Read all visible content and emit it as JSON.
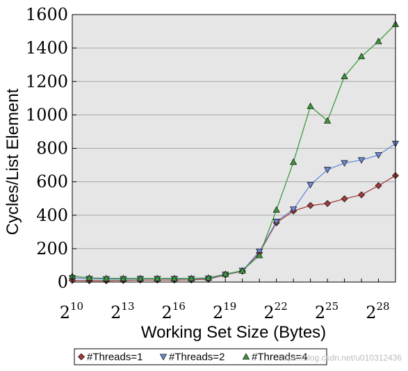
{
  "chart_data": {
    "type": "line",
    "xlabel": "Working Set Size (Bytes)",
    "ylabel": "Cycles/List Element",
    "ylim": [
      0,
      1600
    ],
    "y_ticks": [
      0,
      200,
      400,
      600,
      800,
      1000,
      1200,
      1400,
      1600
    ],
    "x_exponent_range": [
      10,
      29
    ],
    "x_tick_base": "2",
    "x_tick_exponents": [
      "10",
      "13",
      "16",
      "19",
      "22",
      "25",
      "28"
    ],
    "x_scale": "log2",
    "grid": "horizontal",
    "legend_position": "bottom",
    "series": [
      {
        "name": "#Threads=1",
        "color": "#a33a3a",
        "marker": "diamond",
        "x_exponents": [
          10,
          11,
          12,
          13,
          14,
          15,
          16,
          17,
          18,
          19,
          20,
          21,
          22,
          23,
          24,
          25,
          26,
          27,
          28,
          29
        ],
        "values": [
          10,
          8,
          8,
          10,
          12,
          12,
          12,
          13,
          17,
          43,
          65,
          175,
          355,
          425,
          458,
          470,
          498,
          522,
          577,
          637
        ]
      },
      {
        "name": "#Threads=2",
        "color": "#6a8ad8",
        "marker": "triangle-down",
        "x_exponents": [
          10,
          11,
          12,
          13,
          14,
          15,
          16,
          17,
          18,
          19,
          20,
          21,
          22,
          23,
          24,
          25,
          26,
          27,
          28,
          29
        ],
        "values": [
          25,
          20,
          18,
          18,
          20,
          20,
          20,
          20,
          22,
          45,
          68,
          183,
          362,
          435,
          582,
          672,
          712,
          730,
          760,
          828
        ]
      },
      {
        "name": "#Threads=4",
        "color": "#3a9a3a",
        "marker": "triangle-up",
        "x_exponents": [
          10,
          11,
          12,
          13,
          14,
          15,
          16,
          17,
          18,
          19,
          20,
          21,
          22,
          23,
          24,
          25,
          26,
          27,
          28,
          29
        ],
        "values": [
          35,
          25,
          22,
          22,
          22,
          22,
          22,
          22,
          25,
          48,
          68,
          160,
          432,
          718,
          1052,
          965,
          1230,
          1350,
          1440,
          1543
        ]
      }
    ]
  },
  "watermark": "https://blog.csdn.net/u010312436"
}
